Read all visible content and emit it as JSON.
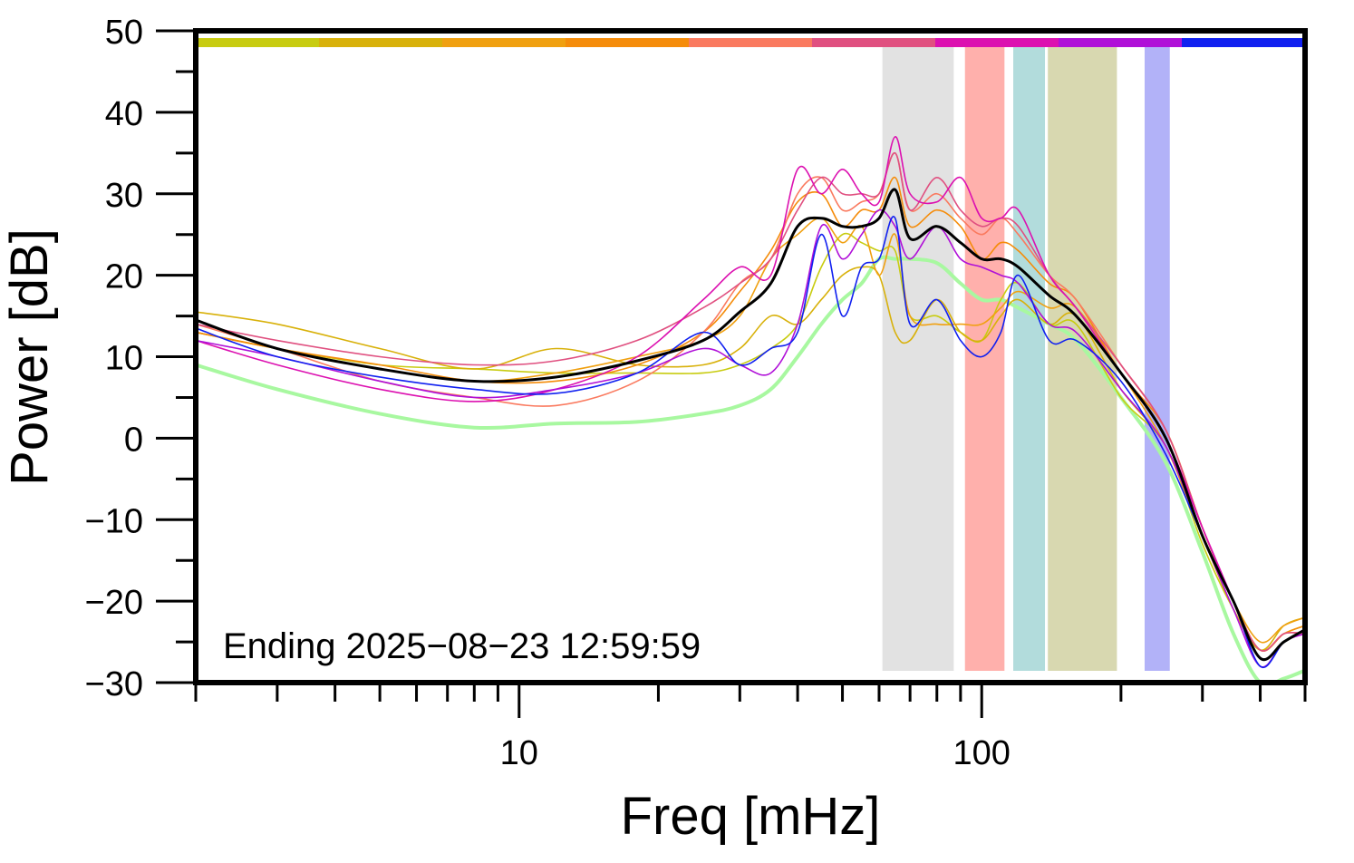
{
  "chart_data": {
    "type": "line",
    "xlabel": "Freq [mHz]",
    "ylabel": "Power [dB]",
    "annotation": "Ending 2025−08−23 12:59:59",
    "xscale": "log",
    "xlim": [
      2,
      500
    ],
    "ylim": [
      -30,
      50
    ],
    "xticks": [
      10,
      100
    ],
    "xticks_minor": [
      2,
      3,
      4,
      5,
      6,
      7,
      8,
      9,
      20,
      30,
      40,
      50,
      60,
      70,
      80,
      90,
      200,
      300,
      400,
      500
    ],
    "yticks": [
      {
        "value": -30,
        "label": "−30"
      },
      {
        "value": -20,
        "label": "−20"
      },
      {
        "value": -10,
        "label": "−10"
      },
      0,
      10,
      20,
      30,
      40,
      50
    ],
    "yticks_minor": [
      -25,
      -15,
      -5,
      5,
      15,
      25,
      35,
      45
    ],
    "color_bar": [
      "#c8cc10",
      "#d8b10a",
      "#f0a010",
      "#f58c0a",
      "#fa7a5f",
      "#e05080",
      "#dc10b0",
      "#b010d8",
      "#1020f0"
    ],
    "bands": [
      {
        "xmin": 61,
        "xmax": 87,
        "color": "#e2e2e2"
      },
      {
        "xmin": 92,
        "xmax": 112,
        "color": "#ffb0ac"
      },
      {
        "xmin": 117,
        "xmax": 137,
        "color": "#b2dcdc"
      },
      {
        "xmin": 139,
        "xmax": 196,
        "color": "#d8d8b0"
      },
      {
        "xmin": 225,
        "xmax": 255,
        "color": "#b2b2f8"
      }
    ],
    "x": [
      2,
      3,
      5,
      8,
      12,
      18,
      25,
      30,
      35,
      40,
      45,
      50,
      55,
      60,
      65,
      70,
      80,
      90,
      100,
      110,
      120,
      140,
      160,
      200,
      250,
      300,
      350,
      400,
      450,
      500
    ],
    "series": [
      {
        "color": "#a8f8a0",
        "width": 4,
        "values": [
          9,
          6,
          3,
          1.3,
          1.8,
          2,
          3,
          4,
          6,
          10,
          14,
          17,
          19,
          22,
          22,
          22,
          21.5,
          19,
          17,
          17,
          16,
          14,
          12,
          5,
          -3,
          -14,
          -24,
          -30,
          -29.5,
          -28.5
        ]
      },
      {
        "color": "#c8cc10",
        "width": 1.6,
        "values": [
          13,
          11,
          9,
          8.5,
          8,
          8,
          8,
          9,
          11,
          14,
          21,
          25,
          24,
          23,
          23,
          15,
          15,
          13,
          12,
          17,
          19,
          14,
          14,
          5,
          -1,
          -13,
          -21,
          -26,
          -24,
          -23
        ]
      },
      {
        "color": "#d8b10a",
        "width": 1.6,
        "values": [
          15.5,
          14,
          11,
          8.5,
          11,
          9,
          9,
          11,
          15,
          14,
          17,
          20,
          21,
          20,
          13,
          12,
          17,
          13,
          12,
          15,
          17,
          14,
          15,
          6,
          -1,
          -12,
          -21,
          -26,
          -23,
          -22
        ]
      },
      {
        "color": "#f0a010",
        "width": 1.6,
        "values": [
          13,
          11,
          8.5,
          7,
          8,
          10,
          12,
          15,
          22,
          25,
          27,
          24,
          26,
          20,
          25,
          15,
          14,
          14,
          14,
          16,
          18,
          16,
          16,
          8,
          -1,
          -12,
          -20,
          -25,
          -23,
          -22
        ]
      },
      {
        "color": "#f58c0a",
        "width": 1.6,
        "values": [
          13,
          11,
          9,
          7,
          7,
          9,
          13,
          18,
          23,
          29,
          30,
          26,
          28,
          28,
          32,
          26,
          28,
          26,
          22,
          24,
          23,
          19,
          17,
          8,
          1,
          -11,
          -20,
          -26,
          -24,
          -23
        ]
      },
      {
        "color": "#fa7a5f",
        "width": 1.6,
        "values": [
          14,
          11,
          7,
          5,
          4,
          7,
          13,
          19,
          22,
          30,
          32,
          28,
          29,
          30,
          35,
          28,
          30,
          27,
          25,
          27,
          25,
          20,
          17,
          9,
          1,
          -11,
          -20,
          -26,
          -24,
          -24
        ]
      },
      {
        "color": "#e05080",
        "width": 1.6,
        "values": [
          14,
          12,
          10,
          9,
          9.5,
          12,
          16,
          19,
          22,
          28,
          32,
          30,
          30,
          30,
          35,
          28,
          32,
          28,
          26,
          27,
          26,
          20,
          16,
          9,
          1,
          -11,
          -20,
          -26,
          -24,
          -24
        ]
      },
      {
        "color": "#dc10b0",
        "width": 1.6,
        "values": [
          12,
          9,
          6,
          4.5,
          6,
          10,
          17,
          21,
          20,
          33,
          30,
          33,
          30,
          29,
          37,
          30,
          29,
          32,
          27,
          27,
          28,
          20,
          16,
          8,
          0,
          -11,
          -20,
          -28,
          -25,
          -24
        ]
      },
      {
        "color": "#b010d8",
        "width": 1.6,
        "values": [
          12,
          10,
          7,
          5,
          6,
          8,
          11,
          9,
          8,
          14,
          26,
          22,
          25,
          28,
          26,
          22,
          26,
          22,
          21,
          20,
          19,
          14,
          13,
          6,
          -1,
          -12,
          -21,
          -28,
          -25,
          -24
        ]
      },
      {
        "color": "#1020f0",
        "width": 1.6,
        "values": [
          13.5,
          10,
          7.5,
          6,
          5.5,
          8,
          13,
          9,
          11,
          13,
          25,
          15,
          21,
          22,
          27,
          14,
          17,
          12,
          10,
          13,
          20,
          12,
          12,
          7,
          -2,
          -12,
          -20,
          -28,
          -25,
          -23.5
        ]
      },
      {
        "color": "#000000",
        "width": 3,
        "values": [
          14.5,
          11,
          8.5,
          7,
          7.5,
          9.5,
          12,
          15.5,
          19,
          26,
          27,
          26,
          26,
          27,
          30.5,
          24.5,
          26,
          24,
          22,
          22,
          21,
          17.5,
          15,
          8,
          0,
          -12,
          -20,
          -27,
          -25,
          -23.5
        ]
      }
    ]
  }
}
